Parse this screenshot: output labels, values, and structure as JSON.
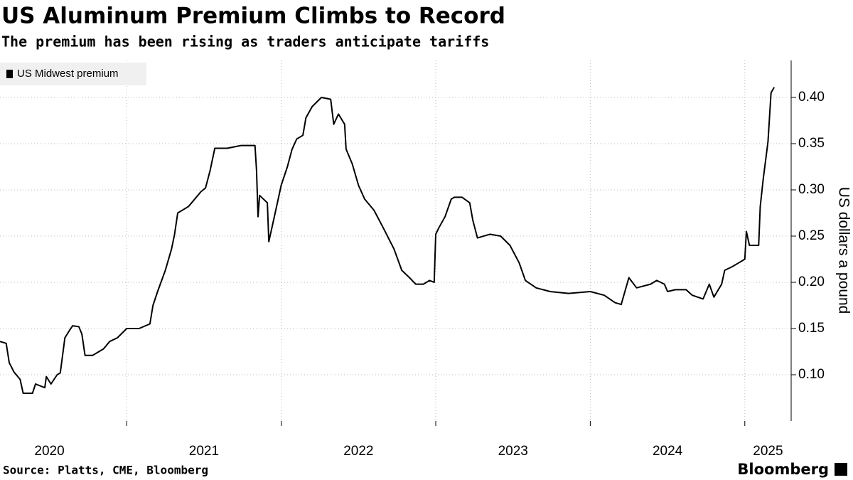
{
  "chart_data": {
    "type": "line",
    "title": "US Aluminum Premium Climbs to Record",
    "subtitle": "The premium has been rising as traders anticipate tariffs",
    "y_axis_label": "US dollars a pound",
    "source": "Source: Platts, CME, Bloomberg",
    "brand": "Bloomberg",
    "legend": "top-left",
    "grid": true,
    "xlim": [
      2020.18,
      2025.3
    ],
    "xticks": [
      {
        "value": 2020.5,
        "label": "2020"
      },
      {
        "value": 2021.5,
        "label": "2021"
      },
      {
        "value": 2022.5,
        "label": "2022"
      },
      {
        "value": 2023.5,
        "label": "2023"
      },
      {
        "value": 2024.5,
        "label": "2024"
      },
      {
        "value": 2025.15,
        "label": "2025"
      }
    ],
    "xgrid": [
      2021,
      2022,
      2023,
      2024,
      2025
    ],
    "ylim": [
      0.05,
      0.44
    ],
    "yticks": [
      {
        "value": 0.1,
        "label": "0.10"
      },
      {
        "value": 0.15,
        "label": "0.15"
      },
      {
        "value": 0.2,
        "label": "0.20"
      },
      {
        "value": 0.25,
        "label": "0.25"
      },
      {
        "value": 0.3,
        "label": "0.30"
      },
      {
        "value": 0.35,
        "label": "0.35"
      },
      {
        "value": 0.4,
        "label": "0.40"
      }
    ],
    "x": [
      2020.18,
      2020.22,
      2020.24,
      2020.27,
      2020.31,
      2020.33,
      2020.39,
      2020.41,
      2020.47,
      2020.48,
      2020.51,
      2020.55,
      2020.57,
      2020.6,
      2020.63,
      2020.65,
      2020.69,
      2020.71,
      2020.73,
      2020.78,
      2020.82,
      2020.85,
      2020.89,
      2020.94,
      2021.0,
      2021.08,
      2021.15,
      2021.17,
      2021.2,
      2021.25,
      2021.29,
      2021.31,
      2021.33,
      2021.4,
      2021.42,
      2021.48,
      2021.51,
      2021.54,
      2021.57,
      2021.65,
      2021.74,
      2021.83,
      2021.84,
      2021.85,
      2021.86,
      2021.91,
      2021.92,
      2021.95,
      2021.97,
      2022.0,
      2022.04,
      2022.07,
      2022.1,
      2022.14,
      2022.16,
      2022.2,
      2022.26,
      2022.32,
      2022.34,
      2022.37,
      2022.41,
      2022.42,
      2022.46,
      2022.5,
      2022.54,
      2022.6,
      2022.66,
      2022.73,
      2022.78,
      2022.83,
      2022.87,
      2022.92,
      2022.96,
      2022.99,
      2023.0,
      2023.02,
      2023.06,
      2023.1,
      2023.12,
      2023.17,
      2023.22,
      2023.24,
      2023.27,
      2023.35,
      2023.42,
      2023.48,
      2023.54,
      2023.58,
      2023.65,
      2023.74,
      2023.86,
      2024.0,
      2024.09,
      2024.16,
      2024.2,
      2024.25,
      2024.3,
      2024.39,
      2024.43,
      2024.48,
      2024.5,
      2024.55,
      2024.62,
      2024.66,
      2024.73,
      2024.77,
      2024.8,
      2024.85,
      2024.87,
      2024.92,
      2024.96,
      2025.0,
      2025.01,
      2025.03,
      2025.09,
      2025.1,
      2025.12,
      2025.15,
      2025.17,
      2025.19
    ],
    "series": [
      {
        "name": "US Midwest premium",
        "color": "#000000",
        "values": [
          0.136,
          0.134,
          0.113,
          0.103,
          0.095,
          0.08,
          0.08,
          0.09,
          0.086,
          0.098,
          0.09,
          0.1,
          0.102,
          0.14,
          0.148,
          0.153,
          0.152,
          0.144,
          0.121,
          0.121,
          0.125,
          0.128,
          0.136,
          0.14,
          0.15,
          0.15,
          0.155,
          0.175,
          0.19,
          0.213,
          0.236,
          0.252,
          0.275,
          0.282,
          0.286,
          0.298,
          0.302,
          0.321,
          0.345,
          0.345,
          0.348,
          0.348,
          0.321,
          0.271,
          0.294,
          0.286,
          0.244,
          0.267,
          0.282,
          0.305,
          0.325,
          0.344,
          0.355,
          0.359,
          0.378,
          0.39,
          0.4,
          0.398,
          0.371,
          0.382,
          0.371,
          0.344,
          0.328,
          0.305,
          0.29,
          0.278,
          0.259,
          0.236,
          0.213,
          0.205,
          0.198,
          0.198,
          0.202,
          0.2,
          0.252,
          0.259,
          0.271,
          0.29,
          0.292,
          0.292,
          0.286,
          0.267,
          0.248,
          0.252,
          0.25,
          0.24,
          0.221,
          0.202,
          0.194,
          0.19,
          0.188,
          0.19,
          0.186,
          0.178,
          0.176,
          0.205,
          0.194,
          0.198,
          0.202,
          0.198,
          0.19,
          0.192,
          0.192,
          0.186,
          0.182,
          0.198,
          0.184,
          0.198,
          0.213,
          0.217,
          0.221,
          0.225,
          0.255,
          0.24,
          0.24,
          0.282,
          0.313,
          0.352,
          0.405,
          0.411
        ]
      }
    ]
  }
}
